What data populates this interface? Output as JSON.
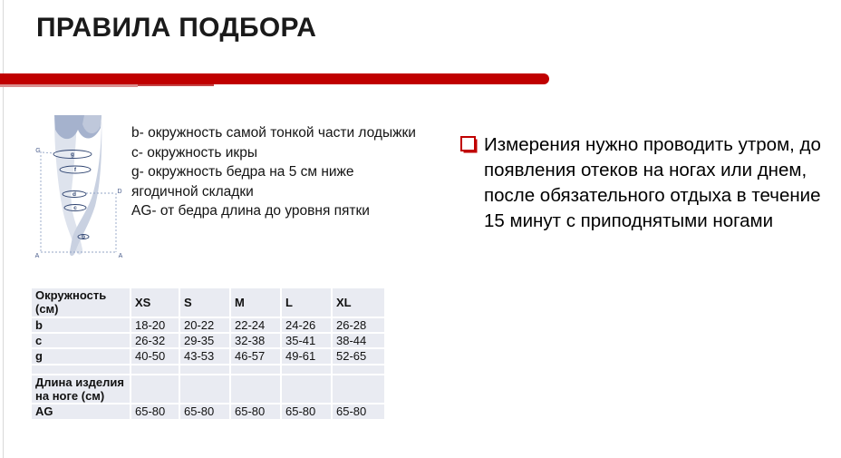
{
  "page": {
    "title": "ПРАВИЛА ПОДБОРА"
  },
  "colors": {
    "accent_red": "#c00000",
    "table_row_bg": "#e9ebf2",
    "diagram_navy": "#2e4370"
  },
  "legend": {
    "lines": [
      "b- окружность самой тонкой части лодыжки",
      "c- окружность икры",
      "g- окружность бедра на 5 см ниже ягодичной складки",
      "AG- от бедра длина до уровня пятки"
    ]
  },
  "note": {
    "bullet_icon": "red-square-checkbox",
    "text": "Измерения нужно проводить утром, до появления отеков на ногах или днем, после обязательного отдыха в течение 15 минут с приподнятыми ногами"
  },
  "diagram": {
    "labels": {
      "G": "G",
      "D": "D",
      "A_left": "A",
      "A_right": "A",
      "g": "g",
      "f": "f",
      "d": "d",
      "c": "c",
      "b": "b"
    }
  },
  "table": {
    "header": [
      "Окружность (см)",
      "XS",
      "S",
      "M",
      "L",
      "XL"
    ],
    "rows": [
      [
        "b",
        "18-20",
        "20-22",
        "22-24",
        "24-26",
        "26-28"
      ],
      [
        "c",
        "26-32",
        "29-35",
        "32-38",
        "35-41",
        "38-44"
      ],
      [
        "g",
        "40-50",
        "43-53",
        "46-57",
        "49-61",
        "52-65"
      ],
      [
        "",
        "",
        "",
        "",
        "",
        ""
      ],
      [
        "Длина изделия на ноге (см)",
        "",
        "",
        "",
        "",
        ""
      ],
      [
        "AG",
        "65-80",
        "65-80",
        "65-80",
        "65-80",
        "65-80"
      ]
    ]
  }
}
